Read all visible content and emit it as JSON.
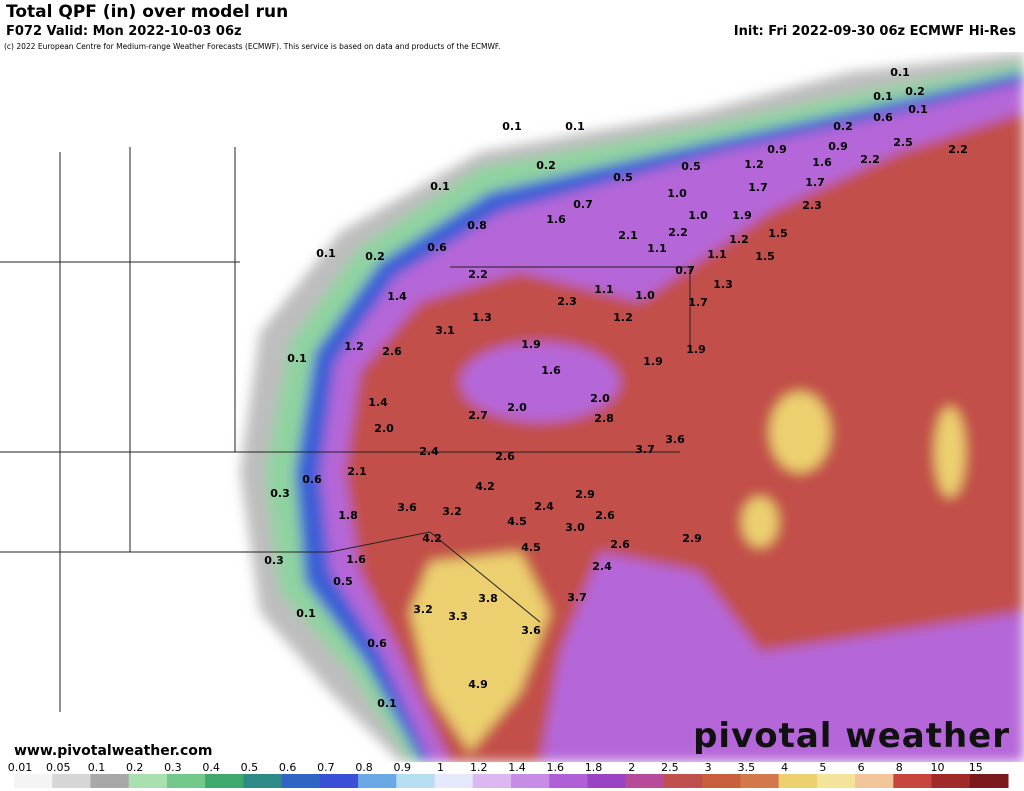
{
  "header": {
    "title": "Total QPF (in) over model run",
    "valid": "F072 Valid: Mon 2022-10-03 06z",
    "init": "Init: Fri 2022-09-30 06z ECMWF Hi-Res",
    "copyright": "(c) 2022 European Centre for Medium-range Weather Forecasts (ECMWF). This service is based on data and products of the ECMWF."
  },
  "map": {
    "labels": [
      "0.1",
      "0.1",
      "0.1",
      "0.2",
      "0.1",
      "0.1",
      "0.6",
      "0.2",
      "0.9",
      "2.5",
      "2.2",
      "1.6",
      "2.2",
      "0.9",
      "1.2",
      "0.5",
      "0.2",
      "0.5",
      "0.1",
      "1.0",
      "0.7",
      "1.7",
      "1.7",
      "2.3",
      "1.9",
      "1.0",
      "0.8",
      "1.6",
      "2.1",
      "2.2",
      "1.5",
      "0.6",
      "1.2",
      "1.1",
      "1.1",
      "1.5",
      "0.1",
      "0.2",
      "2.2",
      "0.7",
      "1.1",
      "1.0",
      "1.7",
      "1.3",
      "1.4",
      "2.3",
      "1.3",
      "3.1",
      "1.2",
      "1.2",
      "2.6",
      "1.9",
      "0.1",
      "1.9",
      "1.9",
      "1.6",
      "1.4",
      "2.0",
      "2.0",
      "2.7",
      "2.8",
      "2.0",
      "3.6",
      "3.7",
      "2.4",
      "2.6",
      "2.1",
      "0.6",
      "4.2",
      "0.3",
      "2.9",
      "3.6",
      "3.2",
      "2.4",
      "2.6",
      "1.8",
      "4.5",
      "3.0",
      "4.2",
      "4.5",
      "2.6",
      "2.9",
      "0.3",
      "1.6",
      "2.4",
      "0.5",
      "3.8",
      "3.7",
      "3.2",
      "3.3",
      "0.1",
      "3.6",
      "0.6",
      "4.9",
      "0.1"
    ]
  },
  "footer": {
    "website": "www.pivotalweather.com",
    "logo": "pivotal weather"
  },
  "colorbar": {
    "ticks": [
      "0.01",
      "0.05",
      "0.1",
      "0.2",
      "0.3",
      "0.4",
      "0.5",
      "0.6",
      "0.7",
      "0.8",
      "0.9",
      "1",
      "1.2",
      "1.4",
      "1.6",
      "1.8",
      "2",
      "2.5",
      "3",
      "3.5",
      "4",
      "5",
      "6",
      "8",
      "10",
      "15"
    ],
    "colors": [
      "#f4f4f4",
      "#d6d6d6",
      "#a8a8a8",
      "#a8e0b0",
      "#72c98a",
      "#3fa86c",
      "#2d8a86",
      "#2f66c4",
      "#3a4fd6",
      "#6aa8e6",
      "#b8def4",
      "#e6e8fb",
      "#dcb8f2",
      "#c68ce6",
      "#b060d6",
      "#9a44c4",
      "#b84a9a",
      "#c0504e",
      "#c8603e",
      "#d2784a",
      "#ecd070",
      "#f3e49a",
      "#f2c49a",
      "#c8443e",
      "#a02a2a",
      "#7a1a1a"
    ]
  }
}
